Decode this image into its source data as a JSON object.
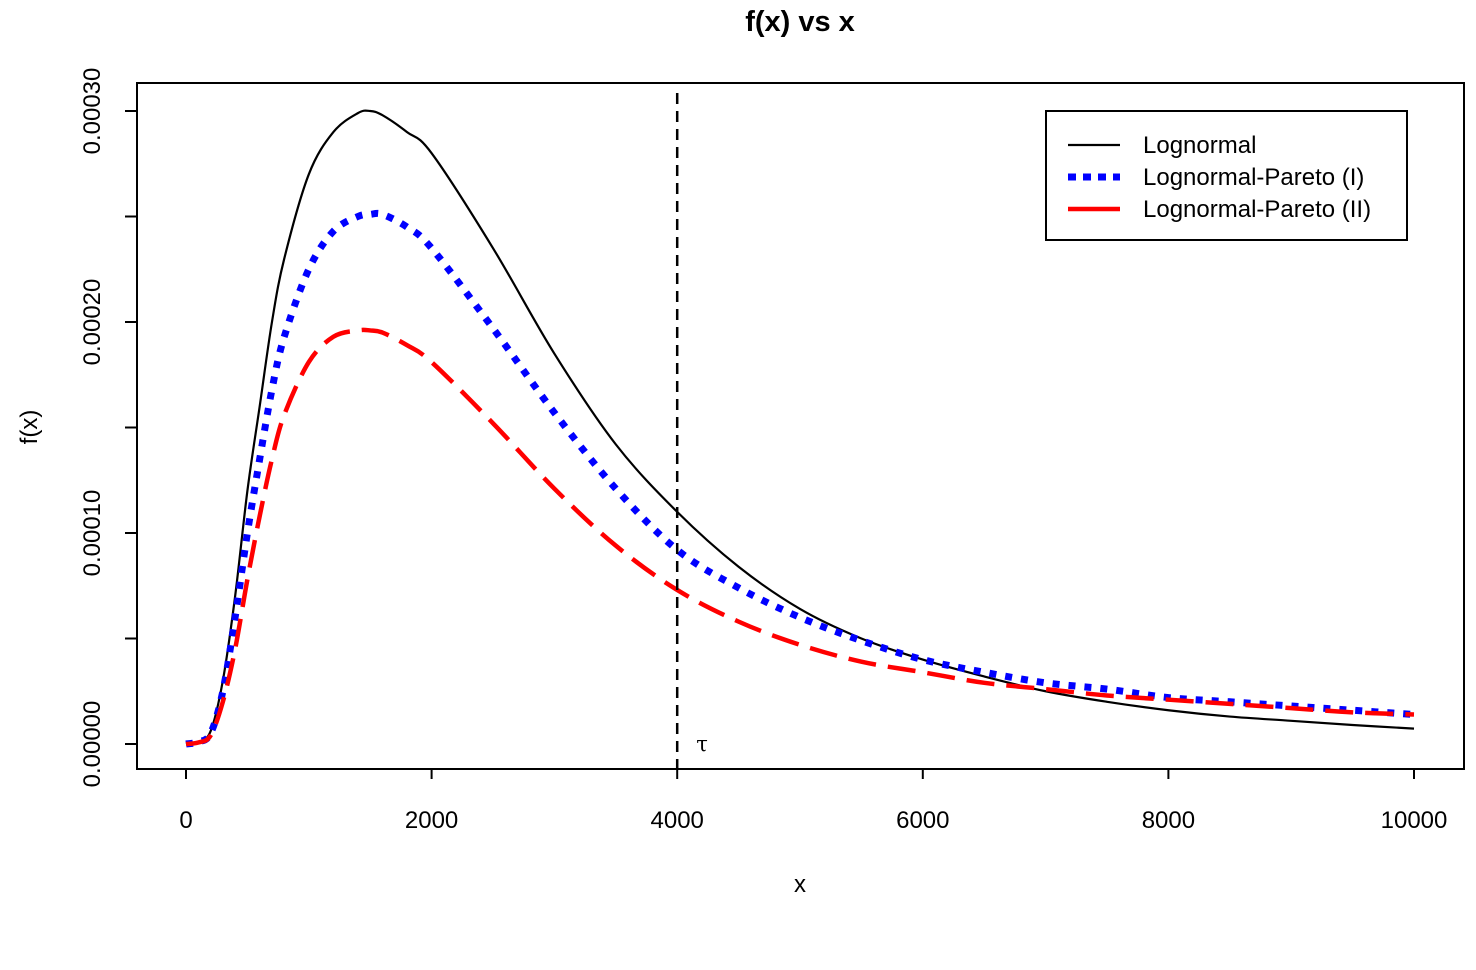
{
  "chart_data": {
    "type": "line",
    "title": "f(x) vs x",
    "xlabel": "x",
    "ylabel": "f(x)",
    "xlim": [
      0,
      10000
    ],
    "ylim": [
      0,
      0.0003
    ],
    "x_ticks": [
      0,
      2000,
      4000,
      6000,
      8000,
      10000
    ],
    "x_tick_labels": [
      "0",
      "2000",
      "4000",
      "6000",
      "8000",
      "10000"
    ],
    "y_ticks": [
      0,
      0.0001,
      0.0002,
      0.0003
    ],
    "y_tick_labels": [
      "0.00000",
      "0.00010",
      "0.00020",
      "0.00030"
    ],
    "y_minor_ticks": [
      5e-05,
      0.00015,
      0.00025
    ],
    "grid": false,
    "legend_position": "top-right",
    "x": [
      0,
      100,
      200,
      300,
      400,
      500,
      600,
      700,
      800,
      1000,
      1200,
      1400,
      1500,
      1600,
      1800,
      2000,
      2500,
      3000,
      3500,
      4000,
      4500,
      5000,
      5500,
      6000,
      6500,
      7000,
      7500,
      8000,
      8500,
      9000,
      9500,
      10000
    ],
    "series": [
      {
        "name": "Lognormal",
        "color": "#000000",
        "style": "solid",
        "values": [
          0,
          1e-06,
          6e-06,
          3e-05,
          7e-05,
          0.00012,
          0.00016,
          0.0002,
          0.00023,
          0.00027,
          0.00029,
          0.000299,
          0.0003,
          0.000298,
          0.00029,
          0.00028,
          0.000235,
          0.000185,
          0.000142,
          0.00011,
          8.4e-05,
          6.4e-05,
          5e-05,
          4e-05,
          3.2e-05,
          2.5e-05,
          2e-05,
          1.6e-05,
          1.3e-05,
          1.1e-05,
          9e-06,
          7.3e-06
        ]
      },
      {
        "name": "Lognormal-Pareto (I)",
        "color": "#0000ff",
        "style": "dotted",
        "values": [
          0,
          1e-06,
          5e-06,
          2.5e-05,
          6e-05,
          0.0001,
          0.000135,
          0.000168,
          0.000193,
          0.000225,
          0.000243,
          0.00025,
          0.000251,
          0.000251,
          0.000245,
          0.000235,
          0.000197,
          0.000157,
          0.000121,
          9.2e-05,
          7.4e-05,
          6e-05,
          4.9e-05,
          4e-05,
          3.4e-05,
          2.9e-05,
          2.6e-05,
          2.2e-05,
          2e-05,
          1.8e-05,
          1.6e-05,
          1.4e-05
        ]
      },
      {
        "name": "Lognormal-Pareto (II)",
        "color": "#ff0000",
        "style": "dashed",
        "values": [
          0,
          7e-07,
          4e-06,
          2e-05,
          4.5e-05,
          7.8e-05,
          0.000108,
          0.000135,
          0.000156,
          0.000181,
          0.000193,
          0.000196,
          0.000196,
          0.000195,
          0.000189,
          0.000181,
          0.000152,
          0.000121,
          9.4e-05,
          7.3e-05,
          5.8e-05,
          4.7e-05,
          3.9e-05,
          3.4e-05,
          2.9e-05,
          2.6e-05,
          2.3e-05,
          2.1e-05,
          1.9e-05,
          1.7e-05,
          1.5e-05,
          1.4e-05
        ]
      }
    ],
    "vline": {
      "x": 4000,
      "style": "dashed",
      "color": "#000000",
      "label": "τ"
    }
  }
}
